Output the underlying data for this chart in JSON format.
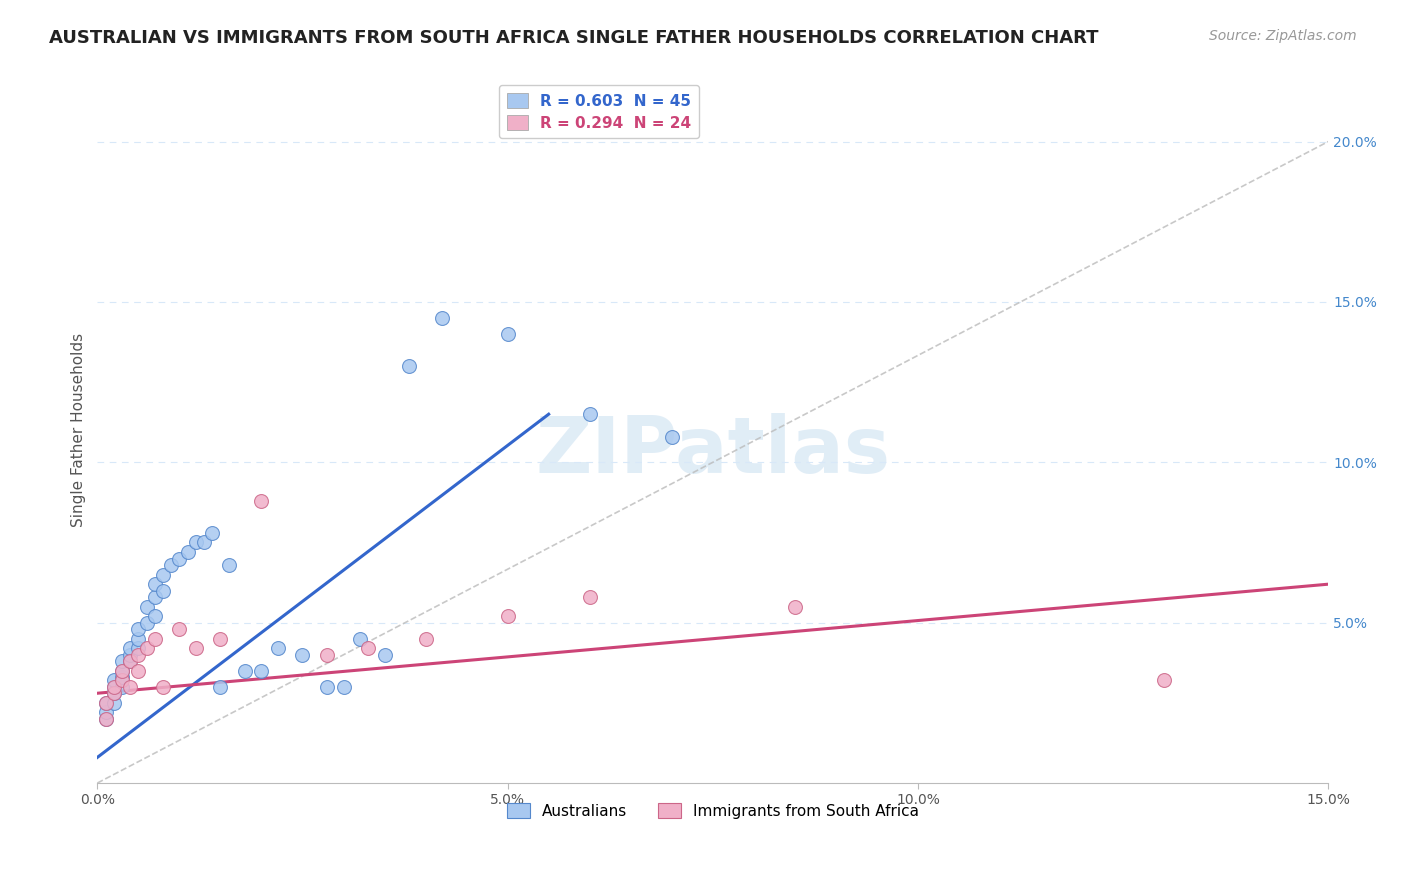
{
  "title": "AUSTRALIAN VS IMMIGRANTS FROM SOUTH AFRICA SINGLE FATHER HOUSEHOLDS CORRELATION CHART",
  "source": "Source: ZipAtlas.com",
  "ylabel": "Single Father Households",
  "xlim": [
    0.0,
    0.15
  ],
  "ylim": [
    0.0,
    0.22
  ],
  "x_tick_vals": [
    0.0,
    0.05,
    0.1,
    0.15
  ],
  "x_tick_labels": [
    "0.0%",
    "5.0%",
    "10.0%",
    "15.0%"
  ],
  "y_tick_vals": [
    0.05,
    0.1,
    0.15,
    0.2
  ],
  "y_tick_labels": [
    "5.0%",
    "10.0%",
    "15.0%",
    "20.0%"
  ],
  "au_scatter_x": [
    0.001,
    0.001,
    0.001,
    0.002,
    0.002,
    0.002,
    0.002,
    0.003,
    0.003,
    0.003,
    0.003,
    0.004,
    0.004,
    0.004,
    0.005,
    0.005,
    0.005,
    0.006,
    0.006,
    0.007,
    0.007,
    0.007,
    0.008,
    0.008,
    0.009,
    0.01,
    0.011,
    0.012,
    0.013,
    0.014,
    0.015,
    0.016,
    0.018,
    0.02,
    0.022,
    0.025,
    0.028,
    0.03,
    0.032,
    0.035,
    0.038,
    0.042,
    0.05,
    0.06,
    0.07
  ],
  "au_scatter_y": [
    0.02,
    0.022,
    0.025,
    0.025,
    0.028,
    0.03,
    0.032,
    0.03,
    0.033,
    0.035,
    0.038,
    0.038,
    0.04,
    0.042,
    0.042,
    0.045,
    0.048,
    0.05,
    0.055,
    0.052,
    0.058,
    0.062,
    0.06,
    0.065,
    0.068,
    0.07,
    0.072,
    0.075,
    0.075,
    0.078,
    0.03,
    0.068,
    0.035,
    0.035,
    0.042,
    0.04,
    0.03,
    0.03,
    0.045,
    0.04,
    0.13,
    0.145,
    0.14,
    0.115,
    0.108
  ],
  "sa_scatter_x": [
    0.001,
    0.001,
    0.002,
    0.002,
    0.003,
    0.003,
    0.004,
    0.004,
    0.005,
    0.005,
    0.006,
    0.007,
    0.008,
    0.01,
    0.012,
    0.015,
    0.02,
    0.028,
    0.033,
    0.04,
    0.05,
    0.06,
    0.085,
    0.13
  ],
  "sa_scatter_y": [
    0.02,
    0.025,
    0.028,
    0.03,
    0.032,
    0.035,
    0.03,
    0.038,
    0.035,
    0.04,
    0.042,
    0.045,
    0.03,
    0.048,
    0.042,
    0.045,
    0.088,
    0.04,
    0.042,
    0.045,
    0.052,
    0.058,
    0.055,
    0.032
  ],
  "au_line_x": [
    0.0,
    0.055
  ],
  "au_line_y": [
    0.008,
    0.115
  ],
  "sa_line_x": [
    0.0,
    0.15
  ],
  "sa_line_y": [
    0.028,
    0.062
  ],
  "diag_line_x": [
    0.0,
    0.15
  ],
  "diag_line_y": [
    0.0,
    0.2
  ],
  "au_color": "#a8c8f0",
  "sa_color": "#f0b0c8",
  "au_edge_color": "#5588cc",
  "sa_edge_color": "#cc6688",
  "au_line_color": "#3366cc",
  "sa_line_color": "#cc4477",
  "diag_color": "#bbbbbb",
  "bg_color": "#ffffff",
  "grid_color": "#d8e8f8",
  "legend1": [
    {
      "label": "R = 0.603  N = 45",
      "face": "#a8c8f0",
      "text": "#3366cc"
    },
    {
      "label": "R = 0.294  N = 24",
      "face": "#f0b0c8",
      "text": "#cc4477"
    }
  ],
  "legend2": [
    {
      "label": "Australians",
      "face": "#a8c8f0",
      "edge": "#5588cc"
    },
    {
      "label": "Immigrants from South Africa",
      "face": "#f0b0c8",
      "edge": "#cc6688"
    }
  ],
  "watermark": "ZIPatlas",
  "watermark_color": "#c8dff0",
  "title_fontsize": 13,
  "source_fontsize": 10,
  "tick_fontsize": 10,
  "ylabel_fontsize": 11,
  "legend_fontsize": 11
}
